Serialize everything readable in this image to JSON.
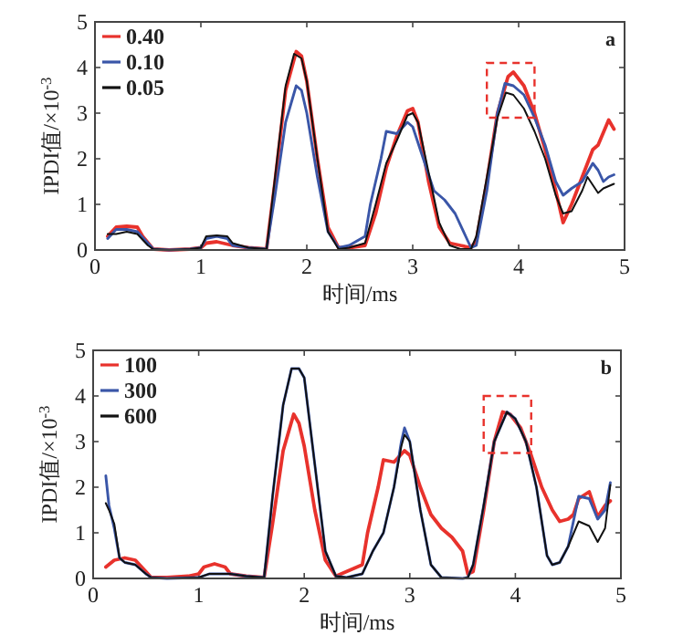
{
  "chart_data": [
    {
      "type": "line",
      "xlabel": "时间/ms",
      "ylabel": "IPDI值/×10$^{-3}$",
      "annotations": [
        "a"
      ],
      "xlim": [
        0,
        5
      ],
      "ylim": [
        0,
        5
      ],
      "xticks": [
        0,
        1,
        2,
        3,
        4,
        5
      ],
      "yticks": [
        0,
        1,
        2,
        3,
        4,
        5
      ],
      "legend": "top left",
      "grid": false,
      "line_style": "solid",
      "marker": "none",
      "series": [
        {
          "name": "0.40",
          "color": "#e8322c",
          "x": [
            0.12,
            0.2,
            0.3,
            0.4,
            0.45,
            0.55,
            0.7,
            0.9,
            1.0,
            1.05,
            1.15,
            1.3,
            1.45,
            1.62,
            1.7,
            1.8,
            1.9,
            1.95,
            2.0,
            2.1,
            2.2,
            2.3,
            2.4,
            2.55,
            2.65,
            2.75,
            2.85,
            2.95,
            3.0,
            3.05,
            3.15,
            3.25,
            3.35,
            3.45,
            3.55,
            3.6,
            3.7,
            3.8,
            3.9,
            3.95,
            4.05,
            4.15,
            4.25,
            4.35,
            4.42,
            4.5,
            4.6,
            4.7,
            4.75,
            4.85,
            4.9
          ],
          "values": [
            0.3,
            0.5,
            0.52,
            0.5,
            0.3,
            0.02,
            0,
            0.02,
            0.05,
            0.15,
            0.18,
            0.1,
            0.05,
            0.02,
            1.5,
            3.5,
            4.35,
            4.25,
            3.7,
            2.0,
            0.5,
            0.05,
            0.05,
            0.1,
            0.8,
            1.8,
            2.5,
            3.05,
            3.1,
            2.8,
            1.5,
            0.5,
            0.15,
            0.1,
            0.05,
            0.2,
            1.5,
            3.0,
            3.8,
            3.9,
            3.6,
            3.0,
            2.2,
            1.3,
            0.6,
            1.0,
            1.6,
            2.2,
            2.3,
            2.85,
            2.65
          ]
        },
        {
          "name": "0.10",
          "color": "#3a56a8",
          "x": [
            0.12,
            0.2,
            0.3,
            0.4,
            0.5,
            0.55,
            0.7,
            0.9,
            1.0,
            1.05,
            1.15,
            1.25,
            1.3,
            1.45,
            1.62,
            1.7,
            1.8,
            1.9,
            1.95,
            2.0,
            2.1,
            2.2,
            2.3,
            2.4,
            2.55,
            2.6,
            2.7,
            2.75,
            2.85,
            2.95,
            3.0,
            3.1,
            3.2,
            3.3,
            3.4,
            3.5,
            3.55,
            3.6,
            3.7,
            3.8,
            3.87,
            3.95,
            4.05,
            4.15,
            4.25,
            4.35,
            4.42,
            4.5,
            4.6,
            4.7,
            4.75,
            4.8,
            4.85,
            4.9
          ],
          "values": [
            0.25,
            0.45,
            0.45,
            0.4,
            0.15,
            0.02,
            0,
            0.02,
            0.05,
            0.25,
            0.3,
            0.25,
            0.1,
            0.05,
            0.02,
            1.2,
            2.8,
            3.6,
            3.5,
            3.0,
            1.6,
            0.4,
            0.05,
            0.1,
            0.3,
            1.0,
            2.0,
            2.6,
            2.55,
            2.8,
            2.7,
            2.0,
            1.3,
            1.1,
            0.8,
            0.3,
            0.05,
            0.1,
            1.3,
            3.0,
            3.65,
            3.6,
            3.4,
            2.9,
            2.3,
            1.5,
            1.2,
            1.35,
            1.5,
            1.9,
            1.75,
            1.5,
            1.6,
            1.65
          ]
        },
        {
          "name": "0.05",
          "color": "#111111",
          "x": [
            0.12,
            0.2,
            0.3,
            0.4,
            0.5,
            0.55,
            0.7,
            0.9,
            1.0,
            1.05,
            1.15,
            1.25,
            1.3,
            1.45,
            1.62,
            1.7,
            1.8,
            1.88,
            1.95,
            2.0,
            2.1,
            2.2,
            2.3,
            2.4,
            2.55,
            2.65,
            2.75,
            2.85,
            2.95,
            3.0,
            3.05,
            3.15,
            3.25,
            3.35,
            3.45,
            3.55,
            3.6,
            3.7,
            3.8,
            3.88,
            3.95,
            4.05,
            4.15,
            4.25,
            4.35,
            4.42,
            4.5,
            4.6,
            4.65,
            4.75,
            4.8,
            4.85,
            4.9
          ],
          "values": [
            0.35,
            0.35,
            0.4,
            0.35,
            0.1,
            0.02,
            0,
            0.02,
            0.05,
            0.3,
            0.32,
            0.3,
            0.15,
            0.05,
            0.02,
            1.6,
            3.6,
            4.3,
            4.2,
            3.7,
            2.0,
            0.4,
            0.02,
            0.05,
            0.15,
            1.0,
            1.9,
            2.4,
            2.95,
            3.0,
            2.8,
            1.7,
            0.6,
            0.1,
            0.02,
            0.02,
            0.3,
            1.6,
            2.9,
            3.45,
            3.4,
            3.1,
            2.6,
            2.0,
            1.2,
            0.8,
            0.85,
            1.3,
            1.6,
            1.25,
            1.35,
            1.4,
            1.45
          ]
        }
      ]
    },
    {
      "type": "line",
      "xlabel": "时间/ms",
      "ylabel": "IPDI值/×10$^{-3}$",
      "annotations": [
        "b"
      ],
      "xlim": [
        0,
        5
      ],
      "ylim": [
        0,
        5
      ],
      "xticks": [
        0,
        1,
        2,
        3,
        4,
        5
      ],
      "yticks": [
        0,
        1,
        2,
        3,
        4,
        5
      ],
      "legend": "top left",
      "grid": false,
      "line_style": "solid",
      "marker": "none",
      "series": [
        {
          "name": "100",
          "color": "#e8322c",
          "x": [
            0.12,
            0.2,
            0.3,
            0.4,
            0.5,
            0.55,
            0.7,
            0.9,
            1.0,
            1.05,
            1.15,
            1.25,
            1.3,
            1.45,
            1.62,
            1.7,
            1.8,
            1.9,
            1.95,
            2.0,
            2.1,
            2.2,
            2.3,
            2.4,
            2.55,
            2.6,
            2.7,
            2.75,
            2.85,
            2.95,
            3.0,
            3.1,
            3.2,
            3.3,
            3.4,
            3.5,
            3.55,
            3.6,
            3.7,
            3.8,
            3.88,
            3.95,
            4.05,
            4.15,
            4.25,
            4.35,
            4.42,
            4.5,
            4.55,
            4.6,
            4.7,
            4.78,
            4.85,
            4.9
          ],
          "values": [
            0.25,
            0.4,
            0.45,
            0.4,
            0.15,
            0.02,
            0.02,
            0.05,
            0.1,
            0.25,
            0.32,
            0.25,
            0.1,
            0.05,
            0.02,
            1.2,
            2.8,
            3.6,
            3.4,
            2.9,
            1.5,
            0.4,
            0.05,
            0.15,
            0.3,
            1.0,
            2.0,
            2.6,
            2.55,
            2.8,
            2.7,
            2.0,
            1.4,
            1.1,
            0.9,
            0.6,
            0.1,
            0.15,
            1.5,
            3.0,
            3.65,
            3.6,
            3.3,
            2.7,
            2.0,
            1.5,
            1.25,
            1.3,
            1.4,
            1.75,
            1.9,
            1.35,
            1.6,
            1.7
          ]
        },
        {
          "name": "300",
          "color": "#3a56a8",
          "x": [
            0.12,
            0.15,
            0.2,
            0.25,
            0.3,
            0.4,
            0.5,
            0.55,
            0.7,
            1.0,
            1.1,
            1.3,
            1.45,
            1.62,
            1.7,
            1.8,
            1.88,
            1.95,
            2.0,
            2.1,
            2.2,
            2.3,
            2.4,
            2.55,
            2.65,
            2.75,
            2.85,
            2.92,
            2.95,
            3.0,
            3.1,
            3.2,
            3.3,
            3.5,
            3.55,
            3.6,
            3.7,
            3.8,
            3.92,
            4.0,
            4.1,
            4.2,
            4.3,
            4.35,
            4.42,
            4.5,
            4.6,
            4.7,
            4.78,
            4.85,
            4.9
          ],
          "values": [
            2.25,
            1.6,
            1.1,
            0.45,
            0.35,
            0.3,
            0.1,
            0.02,
            0,
            0.02,
            0.1,
            0.1,
            0.05,
            0.02,
            1.8,
            3.8,
            4.6,
            4.6,
            4.4,
            2.5,
            0.6,
            0.05,
            0.02,
            0.1,
            0.6,
            1.0,
            2.0,
            3.0,
            3.3,
            3.0,
            1.5,
            0.3,
            0.02,
            0,
            0.02,
            0.3,
            1.6,
            3.0,
            3.65,
            3.5,
            3.0,
            2.0,
            0.5,
            0.3,
            0.35,
            0.7,
            1.8,
            1.75,
            1.3,
            1.5,
            2.1
          ]
        },
        {
          "name": "600",
          "color": "#111111",
          "x": [
            0.12,
            0.15,
            0.2,
            0.25,
            0.3,
            0.4,
            0.5,
            0.55,
            0.7,
            1.0,
            1.1,
            1.3,
            1.45,
            1.62,
            1.7,
            1.8,
            1.88,
            1.95,
            2.0,
            2.1,
            2.2,
            2.3,
            2.4,
            2.55,
            2.65,
            2.75,
            2.85,
            2.92,
            2.95,
            3.0,
            3.1,
            3.2,
            3.3,
            3.5,
            3.55,
            3.6,
            3.7,
            3.8,
            3.92,
            4.0,
            4.1,
            4.2,
            4.3,
            4.35,
            4.42,
            4.5,
            4.6,
            4.7,
            4.78,
            4.85,
            4.9
          ],
          "values": [
            1.65,
            1.5,
            1.2,
            0.45,
            0.35,
            0.3,
            0.1,
            0.02,
            0,
            0.02,
            0.1,
            0.1,
            0.05,
            0.02,
            1.8,
            3.8,
            4.6,
            4.6,
            4.4,
            2.5,
            0.6,
            0.05,
            0.02,
            0.1,
            0.6,
            1.0,
            2.0,
            2.9,
            3.15,
            3.0,
            1.5,
            0.3,
            0.02,
            0,
            0.02,
            0.3,
            1.6,
            3.0,
            3.65,
            3.5,
            3.0,
            2.0,
            0.5,
            0.3,
            0.35,
            0.7,
            1.25,
            1.15,
            0.8,
            1.1,
            2.05
          ]
        }
      ]
    }
  ]
}
